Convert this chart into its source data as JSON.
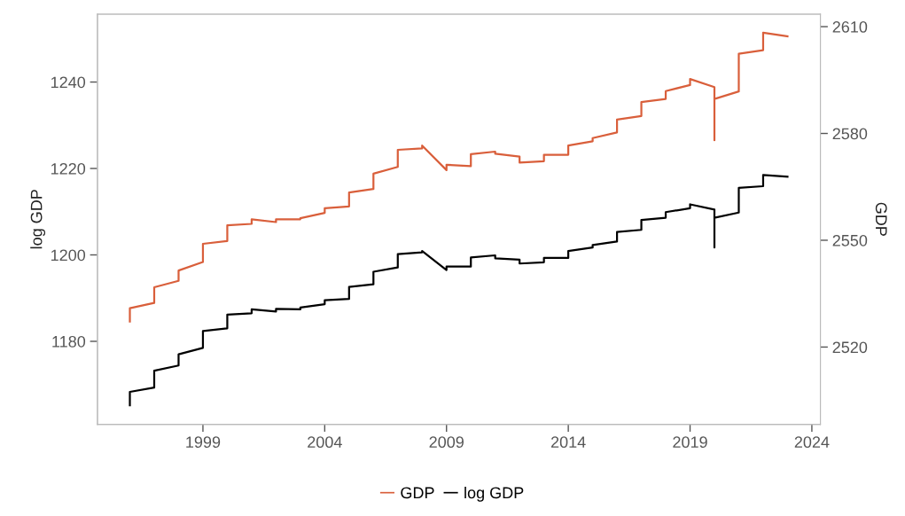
{
  "chart_data": {
    "type": "line",
    "ylabel": "log GDP",
    "y2label": "GDP",
    "x": [
      1996,
      1996,
      1997,
      1997,
      1998,
      1998,
      1999,
      1999,
      2000,
      2000,
      2001,
      2001,
      2002,
      2002,
      2003,
      2003,
      2004,
      2004,
      2005,
      2005,
      2006,
      2006,
      2007,
      2007,
      2008,
      2008,
      2009,
      2009,
      2010,
      2010,
      2011,
      2011,
      2012,
      2012,
      2013,
      2013,
      2014,
      2014,
      2015,
      2015,
      2016,
      2016,
      2017,
      2017,
      2018,
      2018,
      2019,
      2019,
      2020,
      2020,
      2020,
      2021,
      2021,
      2022,
      2022,
      2023
    ],
    "series": [
      {
        "name": "GDP",
        "color": "#d95f3b",
        "axis": "y2",
        "values": [
          2527.2,
          2530.9,
          2532.4,
          2536.8,
          2538.6,
          2541.5,
          2543.9,
          2549.0,
          2549.8,
          2554.2,
          2554.6,
          2555.9,
          2555.1,
          2555.9,
          2555.9,
          2556.2,
          2557.7,
          2559.0,
          2559.5,
          2563.4,
          2564.4,
          2568.7,
          2570.6,
          2575.4,
          2575.8,
          2576.6,
          2569.7,
          2571.2,
          2570.8,
          2574.2,
          2574.9,
          2574.3,
          2573.5,
          2571.8,
          2572.2,
          2574.0,
          2574.0,
          2576.6,
          2577.8,
          2578.7,
          2580.3,
          2583.9,
          2584.9,
          2588.8,
          2589.7,
          2591.9,
          2593.6,
          2595.3,
          2593.0,
          2578.1,
          2589.7,
          2591.8,
          2602.4,
          2603.4,
          2608.3,
          2607.3
        ]
      },
      {
        "name": "log GDP",
        "color": "#000000",
        "values": [
          1165.2,
          1168.3,
          1169.3,
          1173.2,
          1174.4,
          1177.0,
          1178.5,
          1182.4,
          1183.0,
          1186.2,
          1186.5,
          1187.4,
          1186.9,
          1187.5,
          1187.4,
          1187.8,
          1188.6,
          1189.5,
          1189.8,
          1192.6,
          1193.2,
          1196.1,
          1197.1,
          1200.2,
          1200.6,
          1200.9,
          1196.5,
          1197.3,
          1197.3,
          1199.4,
          1199.9,
          1199.2,
          1198.9,
          1198.0,
          1198.3,
          1199.3,
          1199.3,
          1200.9,
          1201.7,
          1202.3,
          1203.1,
          1205.3,
          1205.8,
          1208.1,
          1208.6,
          1209.9,
          1210.8,
          1211.7,
          1210.5,
          1201.7,
          1208.6,
          1209.8,
          1215.5,
          1215.9,
          1218.5,
          1218.1
        ]
      }
    ],
    "xlim": [
      1994.67,
      2024.35
    ],
    "xticks": [
      1999,
      2004,
      2009,
      2014,
      2019,
      2024
    ],
    "ylim": [
      1160.8,
      1255.7
    ],
    "yticks": [
      1180,
      1200,
      1220,
      1240
    ],
    "y2lim": [
      2498.3,
      2613.5
    ],
    "y2ticks": [
      2520,
      2550,
      2580,
      2610
    ],
    "legend": "bottom",
    "grid": false,
    "marker": "none",
    "line_style": "solid"
  }
}
